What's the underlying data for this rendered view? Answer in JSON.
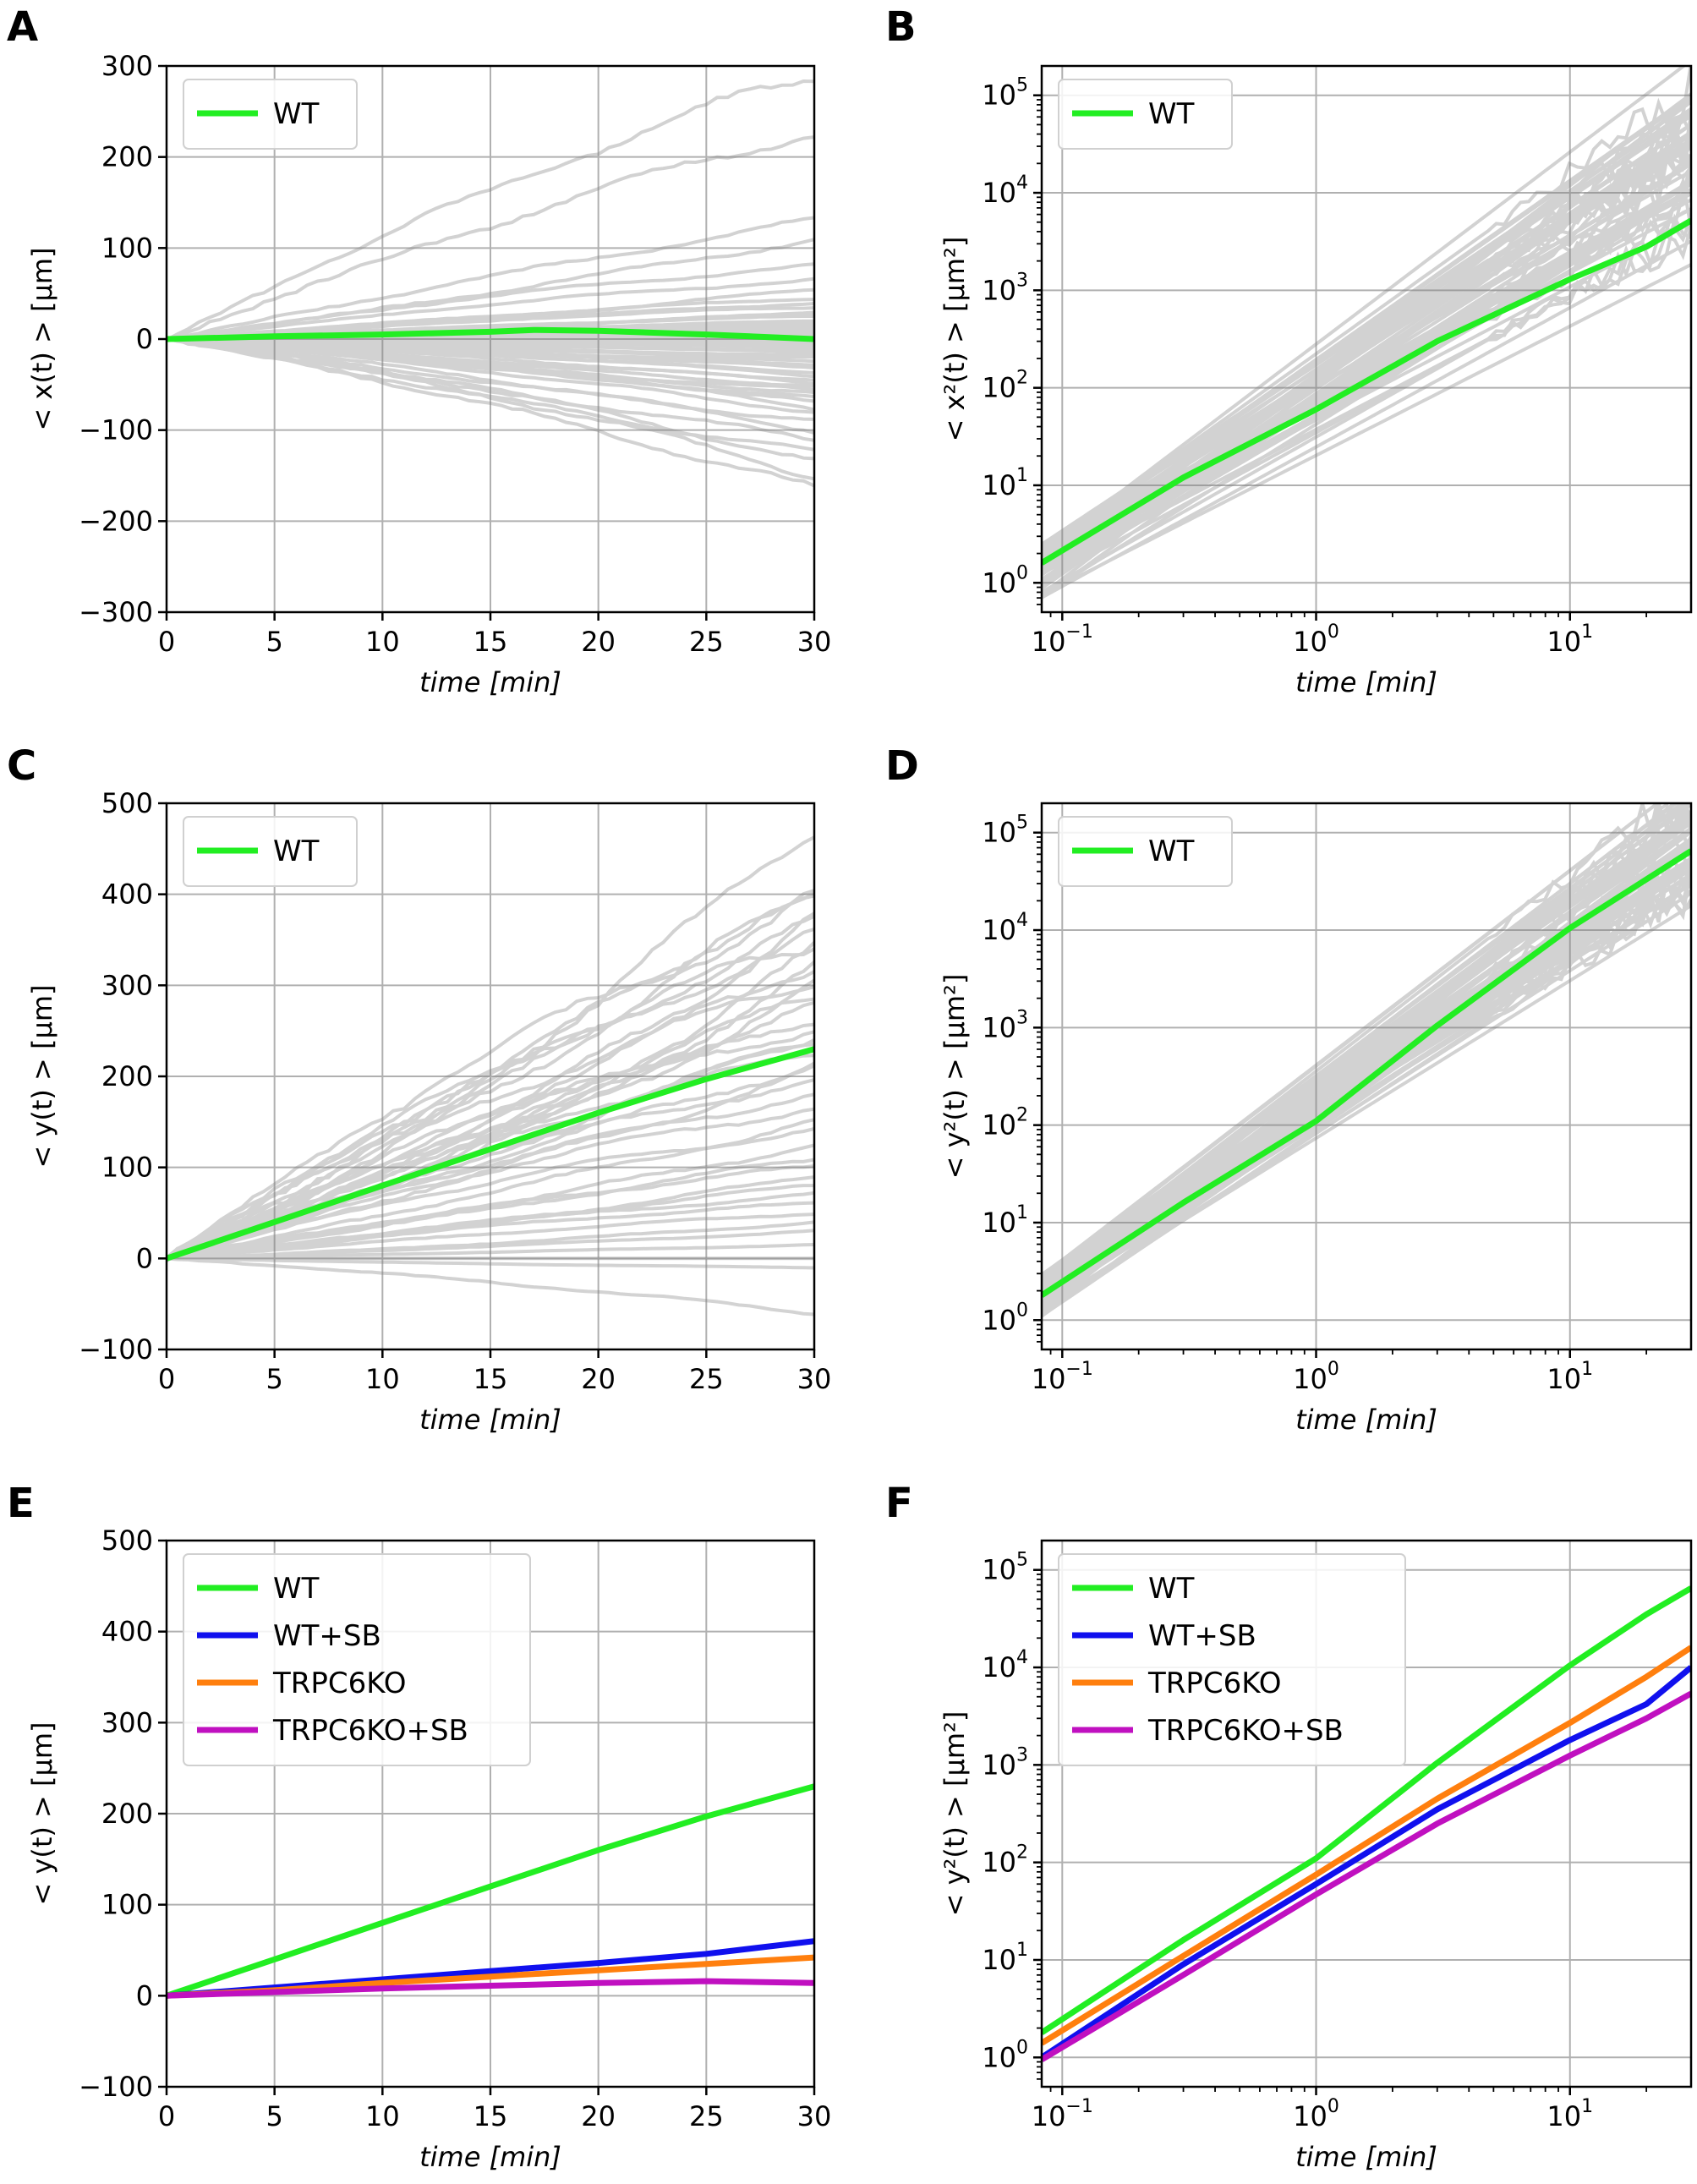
{
  "chart_data": [
    {
      "panel": "A",
      "type": "line",
      "xscale": "linear",
      "yscale": "linear",
      "xlabel": "time [min]",
      "ylabel": "< x(t) > [μm]",
      "xlim": [
        0,
        30
      ],
      "ylim": [
        -300,
        300
      ],
      "xticks": [
        0,
        5,
        10,
        15,
        20,
        25,
        30
      ],
      "xtick_labels": [
        "0",
        "5",
        "10",
        "15",
        "20",
        "25",
        "30"
      ],
      "yticks": [
        -300,
        -200,
        -100,
        0,
        100,
        200,
        300
      ],
      "ytick_labels": [
        "−300",
        "−200",
        "−100",
        "0",
        "100",
        "200",
        "300"
      ],
      "grid": true,
      "legend_position": "upper-left",
      "background_tracks": {
        "color": "#808080",
        "note_count": 60,
        "final_values": [
          290,
          228,
          130,
          110,
          80,
          65,
          55,
          45,
          40,
          35,
          30,
          28,
          25,
          20,
          18,
          15,
          12,
          10,
          8,
          5,
          2,
          0,
          -3,
          -6,
          -9,
          -12,
          -15,
          -18,
          -20,
          -24,
          -28,
          -32,
          -36,
          -40,
          -44,
          -48,
          -52,
          -56,
          -60,
          -65,
          -70,
          -75,
          -80,
          -90,
          -100,
          -110,
          -125,
          -135,
          -150,
          -165
        ]
      },
      "series": [
        {
          "name": "WT",
          "color": "#22ee22",
          "x": [
            0,
            5,
            10,
            15,
            17,
            20,
            25,
            30
          ],
          "y": [
            0,
            3,
            5,
            8,
            10,
            9,
            5,
            0
          ]
        }
      ]
    },
    {
      "panel": "B",
      "type": "line",
      "xscale": "log",
      "yscale": "log",
      "xlabel": "time [min]",
      "ylabel": "< x²(t) > [μm²]",
      "xlim": [
        0.083,
        30
      ],
      "ylim": [
        0.5,
        200000
      ],
      "xticks": [
        0.1,
        1,
        10
      ],
      "xtick_labels": [
        [
          "10",
          "−1"
        ],
        [
          "10",
          "0"
        ],
        [
          "10",
          "1"
        ]
      ],
      "yticks": [
        1,
        10,
        100,
        1000,
        10000,
        100000
      ],
      "ytick_labels": [
        [
          "10",
          "0"
        ],
        [
          "10",
          "1"
        ],
        [
          "10",
          "2"
        ],
        [
          "10",
          "3"
        ],
        [
          "10",
          "4"
        ],
        [
          "10",
          "5"
        ]
      ],
      "grid": true,
      "legend_position": "upper-left",
      "background_tracks": {
        "color": "#808080",
        "exponent_range": [
          1.3,
          2.0
        ],
        "start_range": [
          0.7,
          2.5
        ]
      },
      "series": [
        {
          "name": "WT",
          "color": "#22ee22",
          "x": [
            0.083,
            0.3,
            1,
            3,
            10,
            20,
            30
          ],
          "y": [
            1.6,
            12,
            60,
            300,
            1300,
            2800,
            5200
          ]
        }
      ]
    },
    {
      "panel": "C",
      "type": "line",
      "xscale": "linear",
      "yscale": "linear",
      "xlabel": "time [min]",
      "ylabel": "< y(t) > [μm]",
      "xlim": [
        0,
        30
      ],
      "ylim": [
        -100,
        500
      ],
      "xticks": [
        0,
        5,
        10,
        15,
        20,
        25,
        30
      ],
      "xtick_labels": [
        "0",
        "5",
        "10",
        "15",
        "20",
        "25",
        "30"
      ],
      "yticks": [
        -100,
        0,
        100,
        200,
        300,
        400,
        500
      ],
      "ytick_labels": [
        "−100",
        "0",
        "100",
        "200",
        "300",
        "400",
        "500"
      ],
      "grid": true,
      "legend_position": "upper-left",
      "background_tracks": {
        "color": "#808080",
        "final_values": [
          475,
          410,
          400,
          390,
          375,
          365,
          355,
          345,
          335,
          325,
          315,
          305,
          295,
          285,
          275,
          265,
          255,
          245,
          235,
          225,
          215,
          205,
          195,
          180,
          165,
          150,
          140,
          125,
          110,
          100,
          90,
          80,
          70,
          60,
          50,
          40,
          30,
          15,
          0,
          -10,
          -60
        ]
      },
      "series": [
        {
          "name": "WT",
          "color": "#22ee22",
          "x": [
            0,
            5,
            10,
            15,
            20,
            25,
            30
          ],
          "y": [
            0,
            40,
            80,
            120,
            160,
            197,
            230
          ]
        }
      ]
    },
    {
      "panel": "D",
      "type": "line",
      "xscale": "log",
      "yscale": "log",
      "xlabel": "time [min]",
      "ylabel": "< y²(t) > [μm²]",
      "xlim": [
        0.083,
        30
      ],
      "ylim": [
        0.5,
        200000
      ],
      "xticks": [
        0.1,
        1,
        10
      ],
      "xtick_labels": [
        [
          "10",
          "−1"
        ],
        [
          "10",
          "0"
        ],
        [
          "10",
          "1"
        ]
      ],
      "yticks": [
        1,
        10,
        100,
        1000,
        10000,
        100000
      ],
      "ytick_labels": [
        [
          "10",
          "0"
        ],
        [
          "10",
          "1"
        ],
        [
          "10",
          "2"
        ],
        [
          "10",
          "3"
        ],
        [
          "10",
          "4"
        ],
        [
          "10",
          "5"
        ]
      ],
      "grid": true,
      "legend_position": "upper-left",
      "background_tracks": {
        "color": "#808080",
        "exponent_range": [
          1.6,
          2.05
        ],
        "start_range": [
          1.0,
          3.0
        ]
      },
      "series": [
        {
          "name": "WT",
          "color": "#22ee22",
          "x": [
            0.083,
            0.3,
            1,
            3,
            10,
            30
          ],
          "y": [
            1.8,
            16,
            110,
            1050,
            10500,
            65000
          ]
        }
      ]
    },
    {
      "panel": "E",
      "type": "line",
      "xscale": "linear",
      "yscale": "linear",
      "xlabel": "time [min]",
      "ylabel": "< y(t) > [μm]",
      "xlim": [
        0,
        30
      ],
      "ylim": [
        -100,
        500
      ],
      "xticks": [
        0,
        5,
        10,
        15,
        20,
        25,
        30
      ],
      "xtick_labels": [
        "0",
        "5",
        "10",
        "15",
        "20",
        "25",
        "30"
      ],
      "yticks": [
        -100,
        0,
        100,
        200,
        300,
        400,
        500
      ],
      "ytick_labels": [
        "−100",
        "0",
        "100",
        "200",
        "300",
        "400",
        "500"
      ],
      "grid": true,
      "legend_position": "upper-left",
      "series": [
        {
          "name": "WT",
          "color": "#22ee22",
          "x": [
            0,
            5,
            10,
            15,
            20,
            25,
            30
          ],
          "y": [
            0,
            40,
            80,
            120,
            160,
            197,
            230
          ]
        },
        {
          "name": "WT+SB",
          "color": "#1010ee",
          "x": [
            0,
            5,
            10,
            15,
            20,
            25,
            30
          ],
          "y": [
            0,
            9,
            18,
            27,
            36,
            46,
            60
          ]
        },
        {
          "name": "TRPC6KO",
          "color": "#ff7f0e",
          "x": [
            0,
            5,
            10,
            15,
            20,
            25,
            30
          ],
          "y": [
            0,
            6,
            14,
            21,
            28,
            35,
            42
          ]
        },
        {
          "name": "TRPC6KO+SB",
          "color": "#c010c0",
          "x": [
            0,
            5,
            10,
            15,
            20,
            25,
            30
          ],
          "y": [
            0,
            4,
            8,
            11,
            14,
            16,
            14
          ]
        }
      ]
    },
    {
      "panel": "F",
      "type": "line",
      "xscale": "log",
      "yscale": "log",
      "xlabel": "time [min]",
      "ylabel": "< y²(t) > [μm²]",
      "xlim": [
        0.083,
        30
      ],
      "ylim": [
        0.5,
        200000
      ],
      "xticks": [
        0.1,
        1,
        10
      ],
      "xtick_labels": [
        [
          "10",
          "−1"
        ],
        [
          "10",
          "0"
        ],
        [
          "10",
          "1"
        ]
      ],
      "yticks": [
        1,
        10,
        100,
        1000,
        10000,
        100000
      ],
      "ytick_labels": [
        [
          "10",
          "0"
        ],
        [
          "10",
          "1"
        ],
        [
          "10",
          "2"
        ],
        [
          "10",
          "3"
        ],
        [
          "10",
          "4"
        ],
        [
          "10",
          "5"
        ]
      ],
      "grid": true,
      "legend_position": "upper-left",
      "series": [
        {
          "name": "WT",
          "color": "#22ee22",
          "x": [
            0.083,
            0.3,
            1,
            3,
            10,
            20,
            30
          ],
          "y": [
            1.8,
            16,
            110,
            1050,
            10500,
            35000,
            65000
          ]
        },
        {
          "name": "WT+SB",
          "color": "#1010ee",
          "x": [
            0.083,
            0.3,
            1,
            3,
            10,
            20,
            30
          ],
          "y": [
            1.0,
            9,
            60,
            350,
            1800,
            4200,
            10000
          ]
        },
        {
          "name": "TRPC6KO",
          "color": "#ff7f0e",
          "x": [
            0.083,
            0.3,
            1,
            3,
            10,
            20,
            30
          ],
          "y": [
            1.4,
            11,
            75,
            450,
            2700,
            8000,
            16000
          ]
        },
        {
          "name": "TRPC6KO+SB",
          "color": "#c010c0",
          "x": [
            0.083,
            0.3,
            1,
            3,
            10,
            20,
            30
          ],
          "y": [
            0.95,
            7,
            47,
            250,
            1250,
            3000,
            5400
          ]
        }
      ]
    }
  ]
}
